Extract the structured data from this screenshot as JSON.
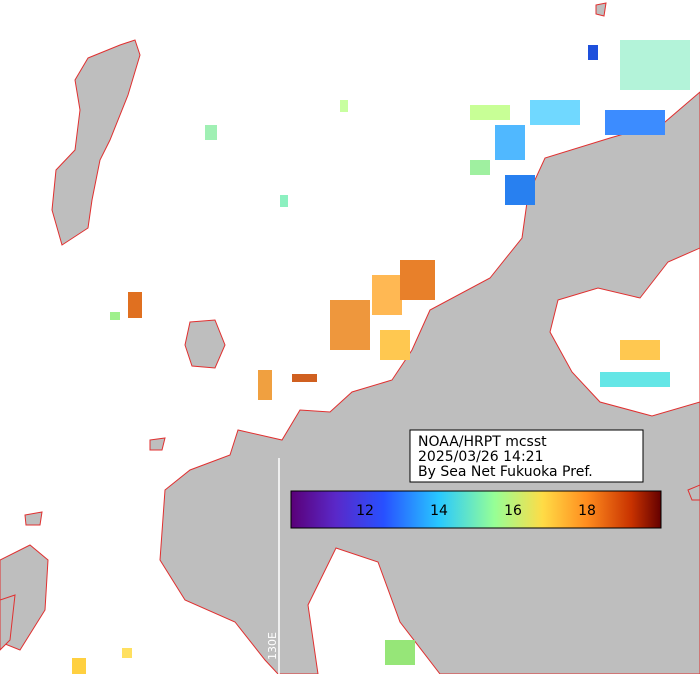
{
  "header": {
    "lines": [
      "NOAA/HRPT mcsst",
      "2025/03/26 14:21",
      "By Sea Net Fukuoka Pref."
    ]
  },
  "colorbar": {
    "range": [
      10,
      20
    ],
    "ticks": [
      12,
      14,
      16,
      18
    ]
  },
  "grid_label": "130E"
}
